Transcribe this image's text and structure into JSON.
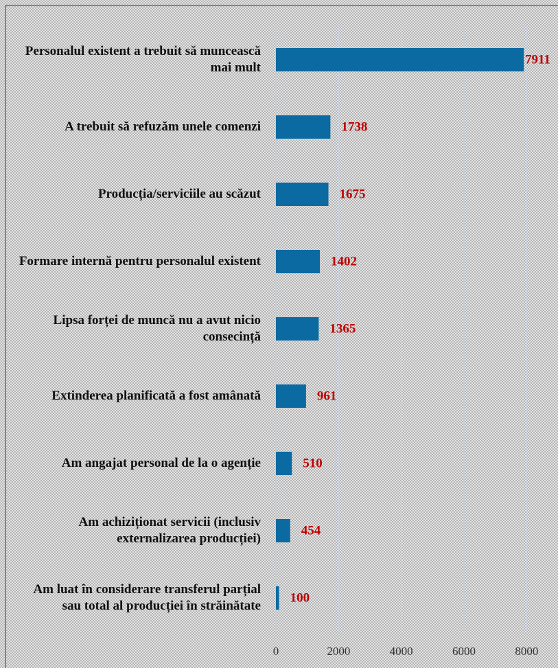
{
  "chart_data": {
    "type": "bar",
    "orientation": "horizontal",
    "categories": [
      "Personalul existent a trebuit să muncească mai mult",
      "A trebuit să refuzăm unele comenzi",
      "Producția/serviciile au scăzut",
      "Formare internă pentru personalul existent",
      "Lipsa forței de muncă nu a avut nicio consecință",
      "Extinderea planificată a fost amânată",
      "Am angajat personal de la o agenție",
      "Am achiziționat servicii (inclusiv externalizarea producției)",
      "Am luat în considerare transferul parțial sau total al producției în străinătate"
    ],
    "values": [
      7911,
      1738,
      1675,
      1402,
      1365,
      961,
      510,
      454,
      100
    ],
    "color": "#0a6aa1",
    "label_color": "#c00000",
    "xlim": [
      0,
      9000
    ],
    "xticks": [
      0,
      2000,
      4000,
      6000,
      8000
    ],
    "grid": true
  }
}
